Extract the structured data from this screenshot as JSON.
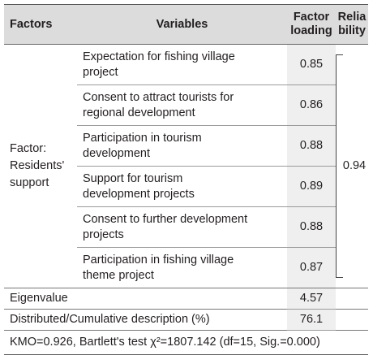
{
  "headers": {
    "factors": "Factors",
    "variables": "Variables",
    "loading_l1": "Factor",
    "loading_l2": "loading",
    "reliability_l1": "Relia",
    "reliability_l2": "bility"
  },
  "factor": {
    "line1": "Factor:",
    "line2": "Residents'",
    "line3": "support",
    "reliability": "0.94"
  },
  "variables": [
    {
      "line1": "Expectation for fishing village",
      "line2": "project",
      "loading": "0.85"
    },
    {
      "line1": "Consent to attract tourists for",
      "line2": "regional development",
      "loading": "0.86"
    },
    {
      "line1": "Participation in tourism",
      "line2": "development",
      "loading": "0.88"
    },
    {
      "line1": "Support for tourism",
      "line2": "development projects",
      "loading": "0.89"
    },
    {
      "line1": "Consent to further development",
      "line2": "projects",
      "loading": "0.88"
    },
    {
      "line1": "Participation in fishing village",
      "line2": "theme project",
      "loading": "0.87"
    }
  ],
  "eigenvalue": {
    "label": "Eigenvalue",
    "value": "4.57"
  },
  "cumulative": {
    "label": "Distributed/Cumulative description (%)",
    "value": "76.1"
  },
  "kmo_note": "KMO=0.926, Bartlett's test χ²=1807.142 (df=15, Sig.=0.000)"
}
